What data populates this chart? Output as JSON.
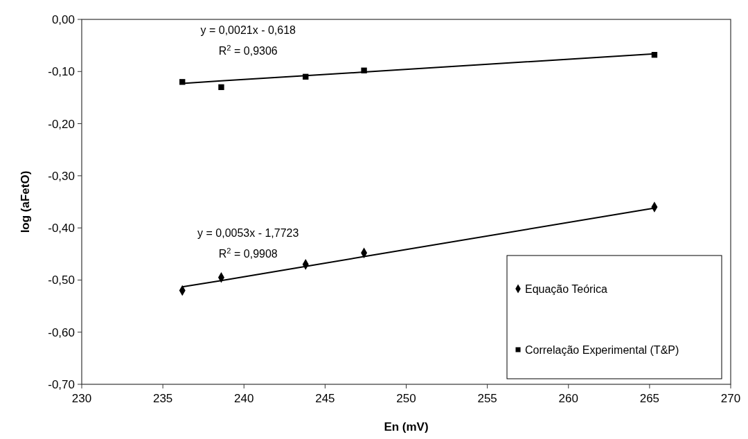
{
  "chart_data": {
    "type": "scatter",
    "xlabel": "En (mV)",
    "ylabel": "log (aFetO)",
    "x": [
      236.2,
      238.6,
      243.8,
      247.4,
      265.3
    ],
    "series": [
      {
        "name": "Equação Teórica",
        "color": "#000000",
        "marker": "diamond",
        "values": [
          -0.52,
          -0.495,
          -0.47,
          -0.448,
          -0.36
        ]
      },
      {
        "name": "Correlação Experimental (T&P)",
        "color": "#000000",
        "marker": "square",
        "values": [
          -0.12,
          -0.13,
          -0.11,
          -0.098,
          -0.068
        ]
      },
      {
        "type": "line",
        "color": "#000000",
        "values": [
          -0.513,
          -0.501,
          -0.474,
          -0.455,
          -0.362
        ]
      },
      {
        "type": "line",
        "color": "#000000",
        "values": [
          -0.123,
          -0.118,
          -0.108,
          -0.101,
          -0.066
        ]
      }
    ],
    "xlim": [
      230,
      270
    ],
    "xticks": [
      230,
      235,
      240,
      245,
      250,
      255,
      260,
      265,
      270
    ],
    "ylim": [
      -0.7,
      0
    ],
    "yticks": [
      {
        "value": 0,
        "label": "0,00"
      },
      {
        "value": -0.1,
        "label": "-0,10"
      },
      {
        "value": -0.2,
        "label": "-0,20"
      },
      {
        "value": -0.3,
        "label": "-0,30"
      },
      {
        "value": -0.4,
        "label": "-0,40"
      },
      {
        "value": -0.5,
        "label": "-0,50"
      },
      {
        "value": -0.6,
        "label": "-0,60"
      },
      {
        "value": -0.7,
        "label": "-0,70"
      }
    ],
    "annotations": [
      "y = 0,0021x - 0,618",
      "R$^{2}$ = 0,9306",
      "y = 0,0053x - 1,7723",
      "R$^{2}$ = 0,9908"
    ],
    "legend": "bottom right",
    "grid": false,
    "line_style": "solid"
  }
}
